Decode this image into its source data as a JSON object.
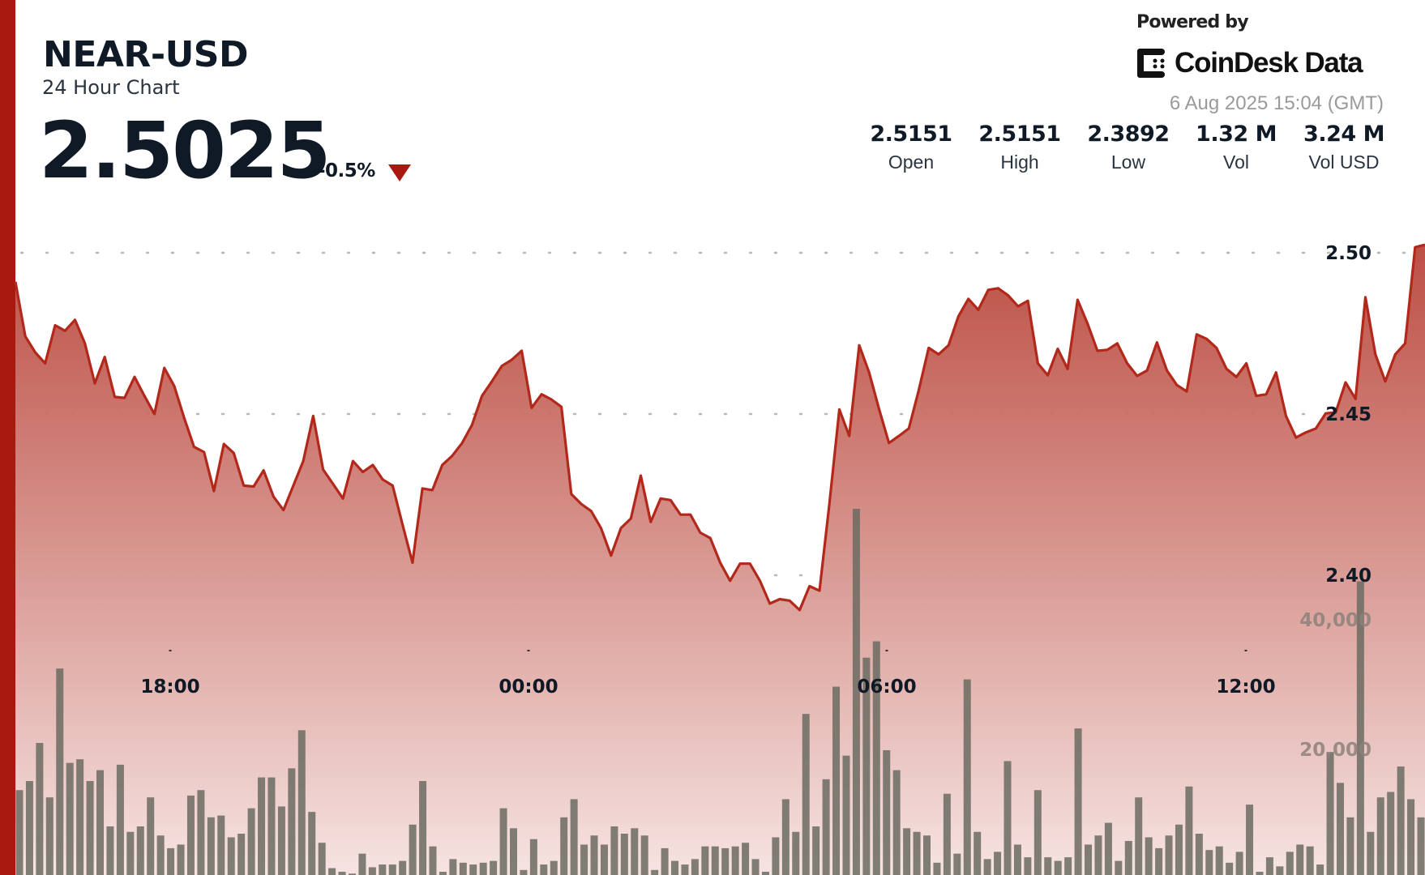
{
  "header": {
    "title": "NEAR-USD",
    "subtitle": "24 Hour Chart",
    "price": "2.5025",
    "change": "-0.5%",
    "change_direction_icon": "triangle-down-icon",
    "powered_by": "Powered by",
    "brand": "CoinDesk Data",
    "timestamp": "6 Aug 2025 15:04 (GMT)"
  },
  "stats": [
    {
      "value": "2.5151",
      "label": "Open"
    },
    {
      "value": "2.5151",
      "label": "High"
    },
    {
      "value": "2.3892",
      "label": "Low"
    },
    {
      "value": "1.32 M",
      "label": "Vol"
    },
    {
      "value": "3.24 M",
      "label": "Vol USD"
    }
  ],
  "colors": {
    "accent": "#a8190f",
    "line": "#b2281b",
    "volume": "#6b6b62"
  },
  "chart_data": {
    "type": "area",
    "grid": "dotted horizontal",
    "x_ticks": [
      "18:00",
      "00:00",
      "06:00",
      "12:00"
    ],
    "price_axis": {
      "ticks": [
        2.5,
        2.45,
        2.4
      ],
      "labels": [
        "2.50",
        "2.45",
        "2.40"
      ],
      "position": "right"
    },
    "volume_axis": {
      "ticks": [
        40000,
        20000
      ],
      "labels": [
        "40,000",
        "20,000"
      ],
      "position": "right"
    },
    "series": [
      {
        "type": "area",
        "values": [
          2.491,
          2.4741,
          2.4691,
          2.4657,
          2.4775,
          2.4758,
          2.4792,
          2.4719,
          2.4595,
          2.4677,
          2.4553,
          2.455,
          2.4615,
          2.4556,
          2.45,
          2.4643,
          2.4587,
          2.4488,
          2.4398,
          2.4382,
          2.4261,
          2.4407,
          2.4379,
          2.4278,
          2.4275,
          2.4325,
          2.4244,
          2.4202,
          2.4278,
          2.4354,
          2.4494,
          2.4328,
          2.4283,
          2.4238,
          2.4354,
          2.432,
          2.4342,
          2.4297,
          2.4278,
          2.4157,
          2.4039,
          2.4269,
          2.4264,
          2.4342,
          2.437,
          2.441,
          2.4466,
          2.4556,
          2.4601,
          2.4649,
          2.4668,
          2.4696,
          2.4519,
          2.4561,
          2.4545,
          2.4522,
          2.4252,
          2.4221,
          2.4199,
          2.4146,
          2.4061,
          2.4146,
          2.4176,
          2.4309,
          2.4165,
          2.4238,
          2.4233,
          2.4188,
          2.4188,
          2.4132,
          2.4115,
          2.4039,
          2.3983,
          2.4036,
          2.4036,
          2.3983,
          2.3912,
          2.3926,
          2.3921,
          2.3892,
          2.3966,
          2.3952,
          2.4221,
          2.4514,
          2.4432,
          2.4713,
          2.4629,
          2.4516,
          2.441,
          2.4432,
          2.4455,
          2.4573,
          2.4705,
          2.4685,
          2.4713,
          2.4803,
          2.4857,
          2.4823,
          2.4885,
          2.489,
          2.4868,
          2.4834,
          2.4851,
          2.4657,
          2.462,
          2.4702,
          2.464,
          2.4854,
          2.4781,
          2.4696,
          2.4699,
          2.4719,
          2.4657,
          2.4618,
          2.4635,
          2.4722,
          2.4635,
          2.459,
          2.457,
          2.4747,
          2.4733,
          2.4705,
          2.464,
          2.4615,
          2.4657,
          2.4556,
          2.4561,
          2.4629,
          2.4494,
          2.4427,
          2.4443,
          2.4455,
          2.4502,
          2.4505,
          2.4598,
          2.4547,
          2.4862,
          2.4685,
          2.4601,
          2.4685,
          2.4719,
          2.5017,
          2.5025
        ]
      },
      {
        "type": "bar",
        "values": [
          13720,
          15120,
          21000,
          12600,
          32480,
          17920,
          18480,
          15120,
          16800,
          8120,
          17640,
          7280,
          8120,
          12600,
          6720,
          4760,
          5320,
          12880,
          13720,
          9520,
          9800,
          6440,
          7000,
          10920,
          15680,
          15680,
          11200,
          17080,
          22960,
          10360,
          5600,
          1680,
          1120,
          840,
          3920,
          1820,
          2240,
          2240,
          2800,
          8400,
          15120,
          5040,
          1120,
          3080,
          2520,
          2240,
          2520,
          2800,
          10920,
          7840,
          1400,
          6160,
          2240,
          2800,
          9520,
          12320,
          5320,
          6720,
          5320,
          8120,
          7000,
          7840,
          6720,
          1400,
          4760,
          2800,
          2240,
          3080,
          5040,
          5040,
          4760,
          5040,
          5600,
          3080,
          1120,
          6440,
          12320,
          7280,
          25480,
          8120,
          15400,
          29680,
          19040,
          57120,
          34160,
          36680,
          19880,
          16800,
          7840,
          7280,
          6720,
          2520,
          13160,
          3920,
          30800,
          7280,
          3080,
          4200,
          18200,
          5320,
          3360,
          13720,
          3360,
          2800,
          3360,
          23240,
          5320,
          6720,
          8680,
          2800,
          5880,
          12600,
          6440,
          4760,
          6720,
          8400,
          14280,
          7000,
          4480,
          5040,
          2520,
          4200,
          11480,
          1120,
          3360,
          1960,
          4200,
          5320,
          5040,
          2240,
          19600,
          14840,
          9520,
          45920,
          7280,
          12600,
          13440,
          17360,
          12320,
          9520
        ]
      }
    ]
  }
}
